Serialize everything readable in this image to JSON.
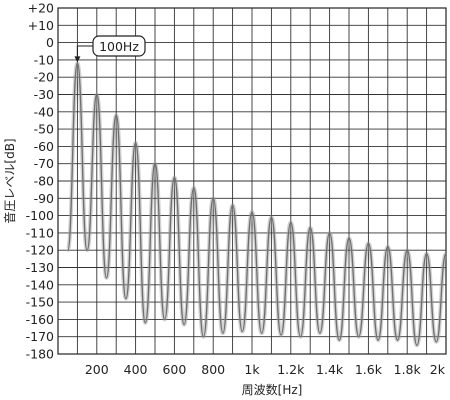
{
  "chart_data": {
    "type": "line",
    "title": "",
    "xlabel": "周波数[Hz]",
    "ylabel": "音圧レベル[dB]",
    "xlim": [
      0,
      2000
    ],
    "ylim": [
      -180,
      20
    ],
    "x_ticks": [
      200,
      400,
      600,
      800,
      1000,
      1200,
      1400,
      1600,
      1800,
      2000
    ],
    "x_tick_labels": [
      "200",
      "400",
      "600",
      "800",
      "1k",
      "1.2k",
      "1.4k",
      "1.6k",
      "1.8k",
      "2k"
    ],
    "y_ticks": [
      20,
      10,
      0,
      -10,
      -20,
      -30,
      -40,
      -50,
      -60,
      -70,
      -80,
      -90,
      -100,
      -110,
      -120,
      -130,
      -140,
      -150,
      -160,
      -170,
      -180
    ],
    "y_tick_labels": [
      "+20",
      "+10",
      "0",
      "-10",
      "-20",
      "-30",
      "-40",
      "-50",
      "-60",
      "-70",
      "-80",
      "-90",
      "-100",
      "-110",
      "-120",
      "-130",
      "-140",
      "-150",
      "-160",
      "-170",
      "-180"
    ],
    "grid": true,
    "annotation": {
      "text": "100Hz",
      "x": 100,
      "y": -12
    },
    "series": [
      {
        "peaks": [
          [
            100,
            -12
          ],
          [
            200,
            -30
          ],
          [
            300,
            -42
          ],
          [
            400,
            -58
          ],
          [
            500,
            -70
          ],
          [
            600,
            -78
          ],
          [
            700,
            -84
          ],
          [
            800,
            -90
          ],
          [
            900,
            -94
          ],
          [
            1000,
            -98
          ],
          [
            1100,
            -101
          ],
          [
            1200,
            -104
          ],
          [
            1300,
            -107
          ],
          [
            1400,
            -110
          ],
          [
            1500,
            -113
          ],
          [
            1600,
            -116
          ],
          [
            1700,
            -118
          ],
          [
            1800,
            -120
          ],
          [
            1900,
            -122
          ],
          [
            2000,
            -122
          ]
        ],
        "dips": [
          [
            50,
            -120
          ],
          [
            150,
            -120
          ],
          [
            250,
            -136
          ],
          [
            350,
            -148
          ],
          [
            450,
            -162
          ],
          [
            550,
            -160
          ],
          [
            650,
            -163
          ],
          [
            750,
            -170
          ],
          [
            850,
            -168
          ],
          [
            950,
            -167
          ],
          [
            1050,
            -168
          ],
          [
            1150,
            -169
          ],
          [
            1250,
            -170
          ],
          [
            1350,
            -168
          ],
          [
            1450,
            -172
          ],
          [
            1550,
            -170
          ],
          [
            1650,
            -172
          ],
          [
            1750,
            -172
          ],
          [
            1850,
            -175
          ],
          [
            1950,
            -173
          ]
        ]
      }
    ]
  }
}
